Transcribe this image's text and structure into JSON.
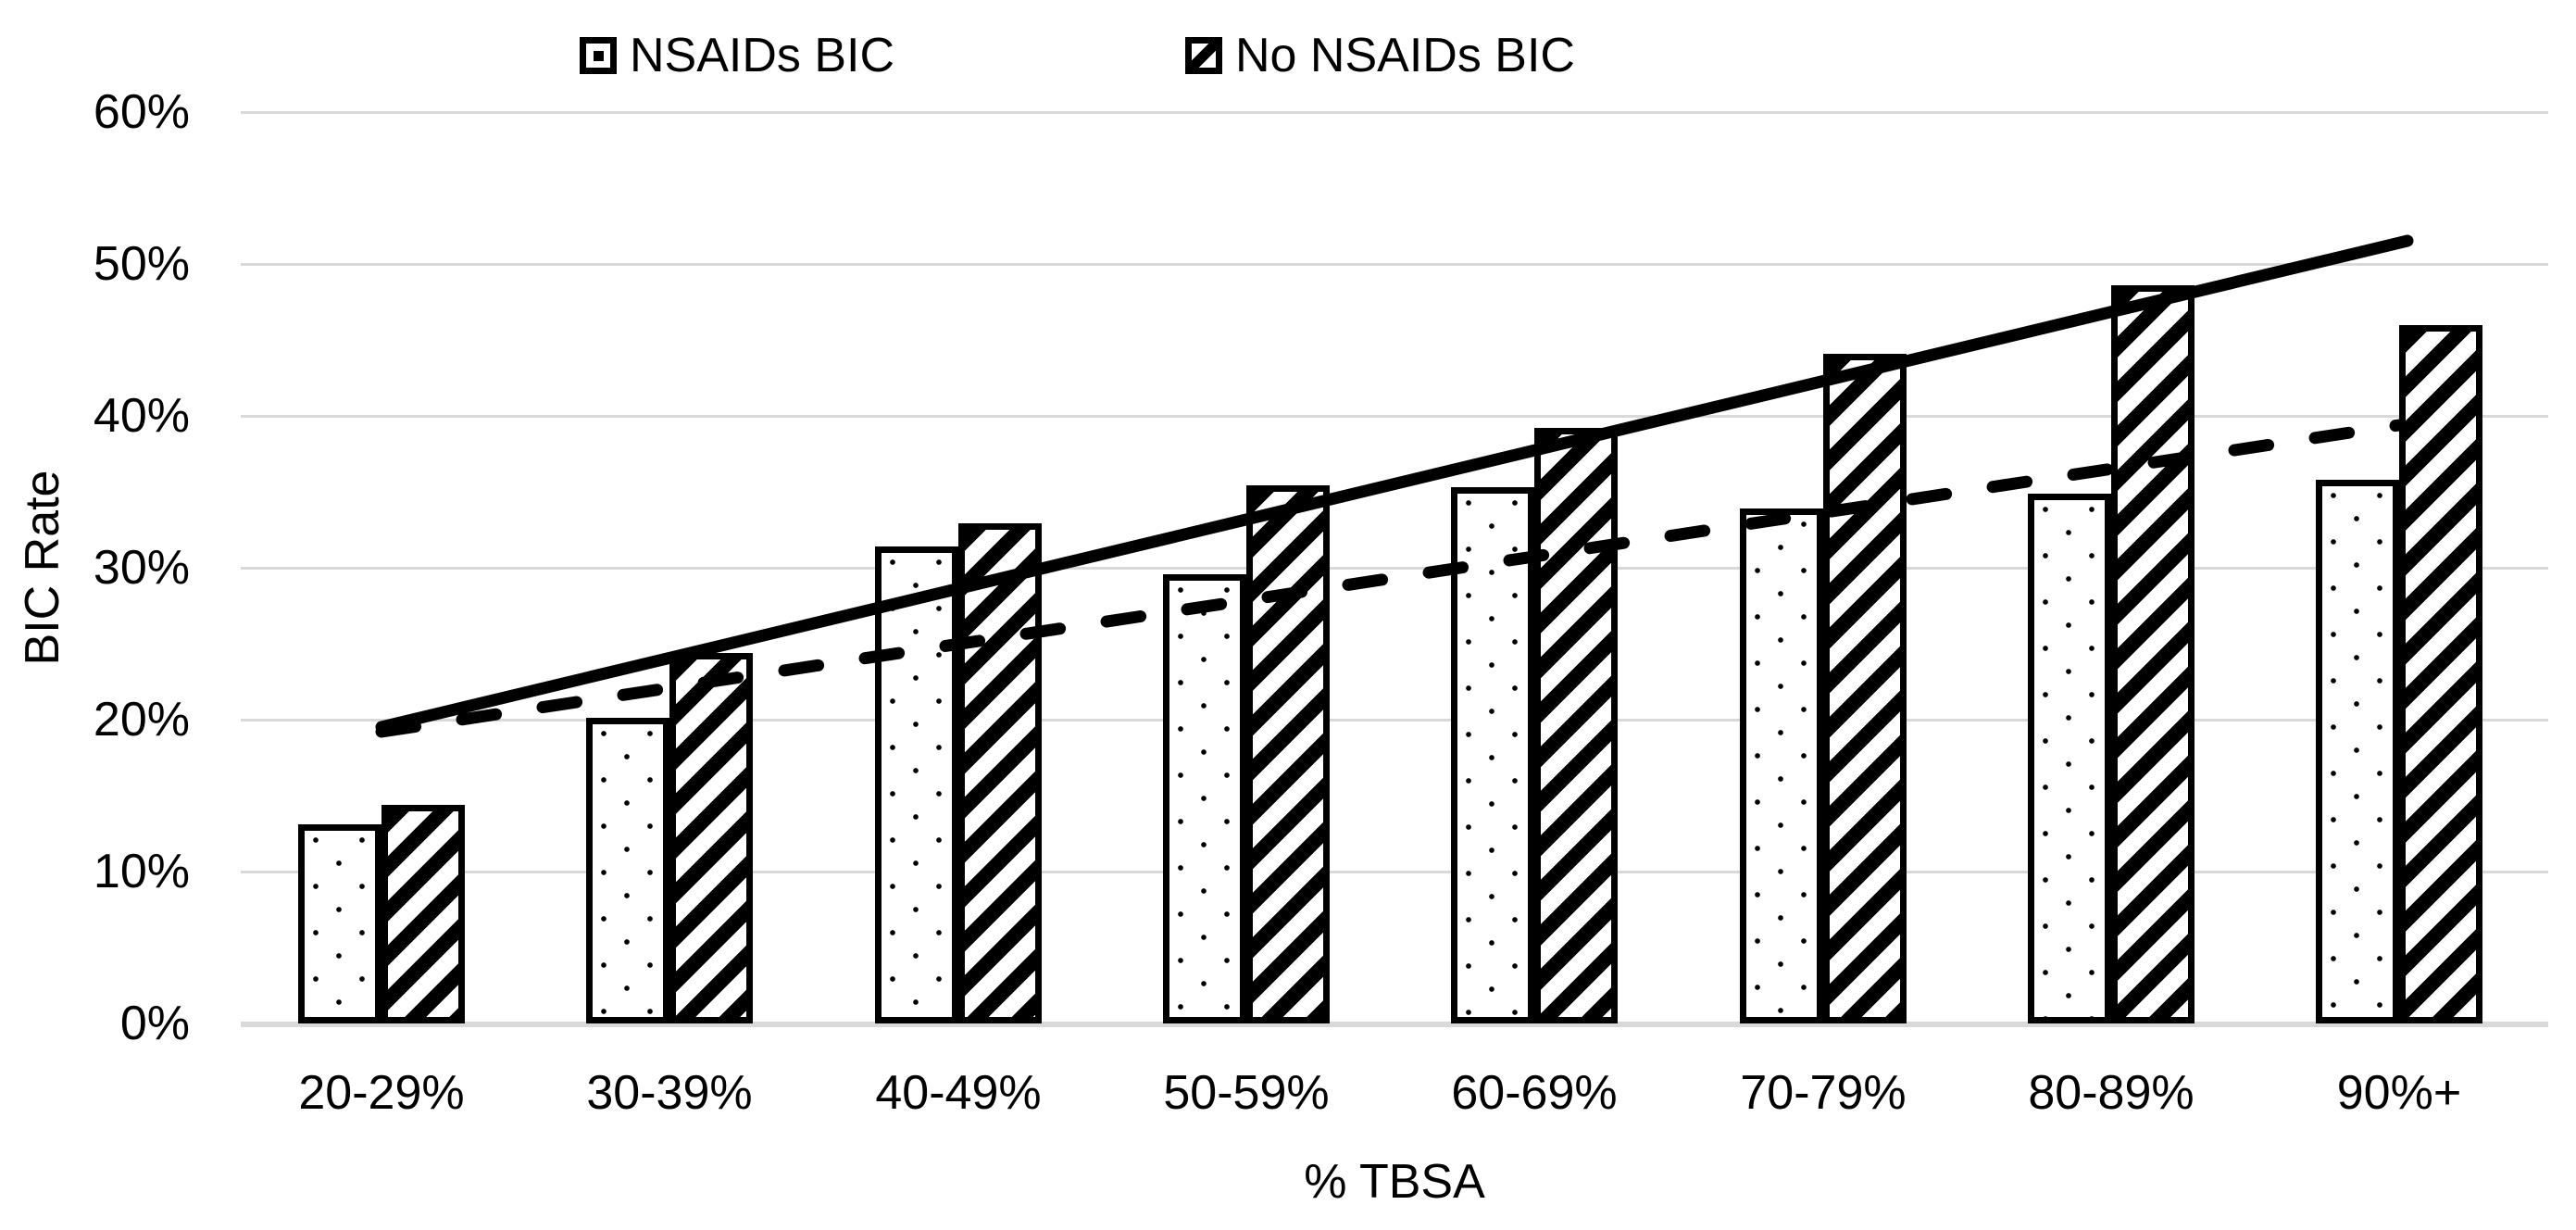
{
  "colors": {
    "background": "#ffffff",
    "ink": "#000000",
    "gridline": "#d9d9d9",
    "bar_fill": "#ffffff"
  },
  "chart_data": {
    "type": "bar",
    "title": "",
    "xlabel": "% TBSA",
    "ylabel": "BIC Rate",
    "ylim": [
      0,
      60
    ],
    "grid": "horizontal",
    "legend_position": "top",
    "ytick_values": [
      0,
      10,
      20,
      30,
      40,
      50,
      60
    ],
    "ytick_labels": [
      "0%",
      "10%",
      "20%",
      "30%",
      "40%",
      "50%",
      "60%"
    ],
    "categories": [
      "20-29%",
      "30-39%",
      "40-49%",
      "50-59%",
      "60-69%",
      "70-79%",
      "80-89%",
      "90%+"
    ],
    "series": [
      {
        "name": "NSAIDs BIC",
        "pattern": "dots",
        "values": [
          13.1,
          20.1,
          31.4,
          29.6,
          35.3,
          33.9,
          34.9,
          35.8
        ]
      },
      {
        "name": "No NSAIDs BIC",
        "pattern": "diagonal-stripes",
        "values": [
          14.4,
          24.4,
          32.9,
          35.4,
          39.2,
          44.1,
          48.6,
          46.0
        ]
      }
    ],
    "trendlines": [
      {
        "series": "NSAIDs BIC",
        "style": "dashed",
        "v_start": 19.2,
        "v_end": 39.4
      },
      {
        "series": "No NSAIDs BIC",
        "style": "solid",
        "v_start": 19.5,
        "v_end": 51.5
      }
    ]
  }
}
